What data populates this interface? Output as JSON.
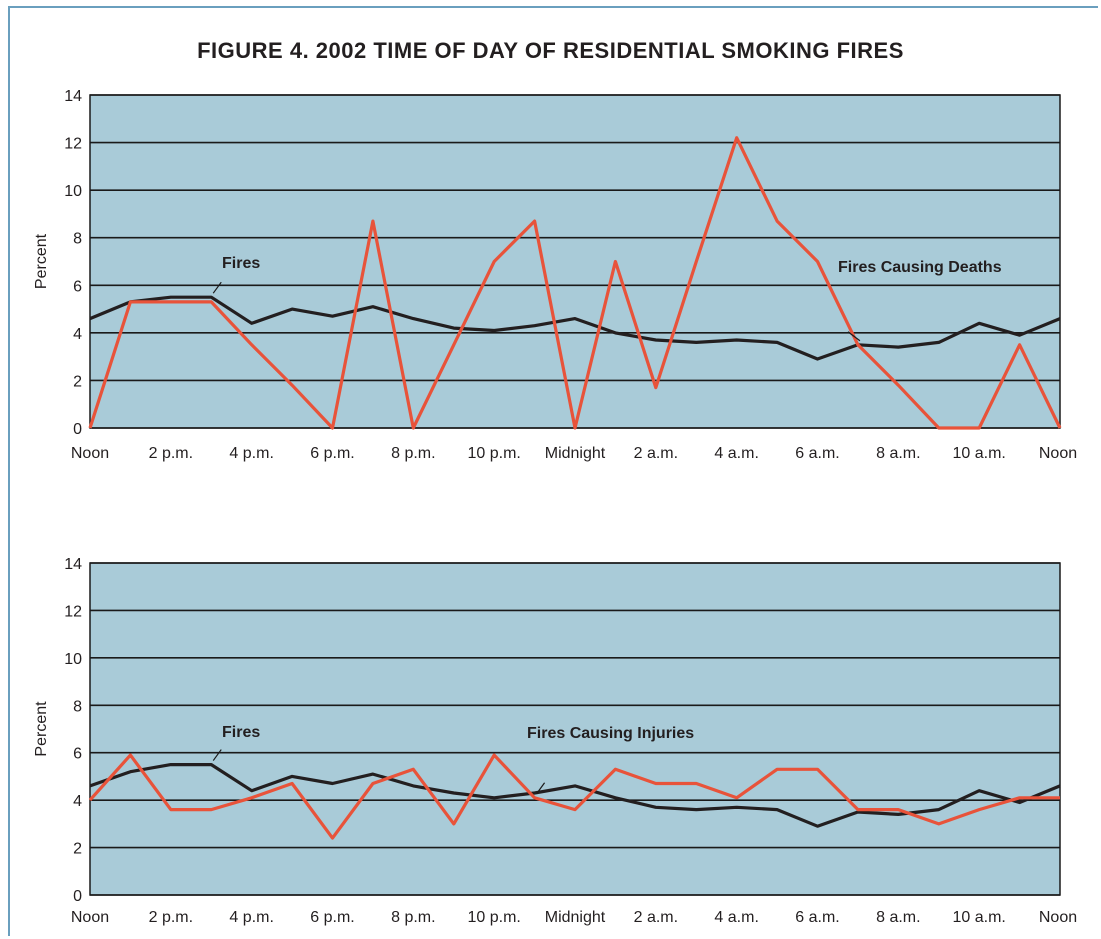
{
  "title": "FIGURE 4.  2002 TIME OF DAY OF RESIDENTIAL SMOKING FIRES",
  "colors": {
    "plot_bg": "#a9cbd8",
    "fires": "#231f20",
    "secondary": "#e8533a",
    "grid": "#1a1a1a",
    "border": "#6a9fbe"
  },
  "chart_data": [
    {
      "type": "line",
      "ylabel": "Percent",
      "ylim": [
        0,
        14
      ],
      "yticks": [
        0,
        2,
        4,
        6,
        8,
        10,
        12,
        14
      ],
      "grid": true,
      "x_tick_labels": [
        "Noon",
        "2 p.m.",
        "4 p.m.",
        "6 p.m.",
        "8 p.m.",
        "10 p.m.",
        "Midnight",
        "2 a.m.",
        "4 a.m.",
        "6 a.m.",
        "8 a.m.",
        "10 a.m.",
        "Noon"
      ],
      "x": [
        "12",
        "13",
        "14",
        "15",
        "16",
        "17",
        "18",
        "19",
        "20",
        "21",
        "22",
        "23",
        "0",
        "1",
        "2",
        "3",
        "4",
        "5",
        "6",
        "7",
        "8",
        "9",
        "10",
        "11",
        "12"
      ],
      "series": [
        {
          "name": "Fires",
          "values": [
            4.6,
            5.3,
            5.5,
            5.5,
            4.4,
            5.0,
            4.7,
            5.1,
            4.6,
            4.2,
            4.1,
            4.3,
            4.6,
            4.0,
            3.7,
            3.6,
            3.7,
            3.6,
            2.9,
            3.5,
            3.4,
            3.6,
            4.4,
            3.9,
            4.6
          ]
        },
        {
          "name": "Fires Causing Deaths",
          "values": [
            0.0,
            5.3,
            5.3,
            5.3,
            3.5,
            1.8,
            0.0,
            8.7,
            0.0,
            3.5,
            7.0,
            8.7,
            0.0,
            7.0,
            1.7,
            7.0,
            12.2,
            8.7,
            7.0,
            3.5,
            1.8,
            0.0,
            0.0,
            3.5,
            0.0
          ]
        }
      ],
      "annotations": [
        {
          "text": "Fires",
          "series": "Fires"
        },
        {
          "text": "Fires Causing Deaths",
          "series": "Fires Causing Deaths"
        }
      ]
    },
    {
      "type": "line",
      "ylabel": "Percent",
      "ylim": [
        0,
        14
      ],
      "yticks": [
        0,
        2,
        4,
        6,
        8,
        10,
        12,
        14
      ],
      "grid": true,
      "x_tick_labels": [
        "Noon",
        "2 p.m.",
        "4 p.m.",
        "6 p.m.",
        "8 p.m.",
        "10 p.m.",
        "Midnight",
        "2 a.m.",
        "4 a.m.",
        "6 a.m.",
        "8 a.m.",
        "10 a.m.",
        "Noon"
      ],
      "x": [
        "12",
        "13",
        "14",
        "15",
        "16",
        "17",
        "18",
        "19",
        "20",
        "21",
        "22",
        "23",
        "0",
        "1",
        "2",
        "3",
        "4",
        "5",
        "6",
        "7",
        "8",
        "9",
        "10",
        "11",
        "12"
      ],
      "series": [
        {
          "name": "Fires",
          "values": [
            4.6,
            5.2,
            5.5,
            5.5,
            4.4,
            5.0,
            4.7,
            5.1,
            4.6,
            4.3,
            4.1,
            4.3,
            4.6,
            4.1,
            3.7,
            3.6,
            3.7,
            3.6,
            2.9,
            3.5,
            3.4,
            3.6,
            4.4,
            3.9,
            4.6
          ]
        },
        {
          "name": "Fires Causing Injuries",
          "values": [
            4.0,
            5.9,
            3.6,
            3.6,
            4.1,
            4.7,
            2.4,
            4.7,
            5.3,
            3.0,
            5.9,
            4.1,
            3.6,
            5.3,
            4.7,
            4.7,
            4.1,
            5.3,
            5.3,
            3.6,
            3.6,
            3.0,
            3.6,
            4.1,
            4.1
          ]
        }
      ],
      "annotations": [
        {
          "text": "Fires",
          "series": "Fires"
        },
        {
          "text": "Fires Causing Injuries",
          "series": "Fires Causing Injuries"
        }
      ]
    }
  ]
}
